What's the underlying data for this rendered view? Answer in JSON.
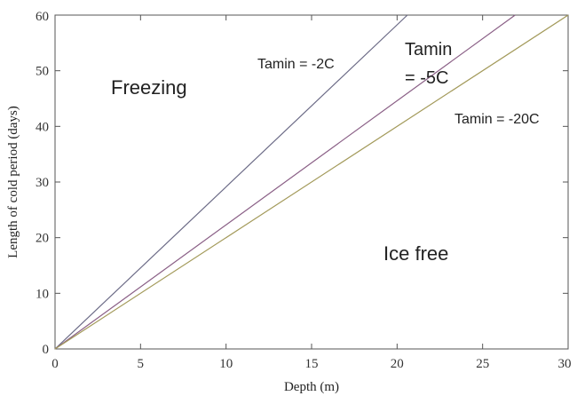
{
  "chart_data": {
    "type": "line",
    "title": "",
    "xlabel": "Depth (m)",
    "ylabel": "Length of cold period (days)",
    "xlim": [
      0,
      30
    ],
    "ylim": [
      0,
      60
    ],
    "xticks": [
      0,
      5,
      10,
      15,
      20,
      25,
      30
    ],
    "yticks": [
      0,
      10,
      20,
      30,
      40,
      50,
      60
    ],
    "grid": false,
    "series": [
      {
        "x": [
          0,
          20.6
        ],
        "y": [
          0,
          60
        ],
        "color": "#6b6a86"
      },
      {
        "x": [
          0,
          26.9
        ],
        "y": [
          0,
          60
        ],
        "color": "#8a5f86"
      },
      {
        "x": [
          0,
          30
        ],
        "y": [
          0,
          60
        ],
        "color": "#a39a5a"
      }
    ],
    "annotations": {
      "series_1": "Tamin = -2C",
      "series_2_line1": "Tamin",
      "series_2_line2": "= -5C",
      "series_3": "Tamin = -20C",
      "region_top": "Freezing",
      "region_bottom": "Ice free"
    }
  }
}
